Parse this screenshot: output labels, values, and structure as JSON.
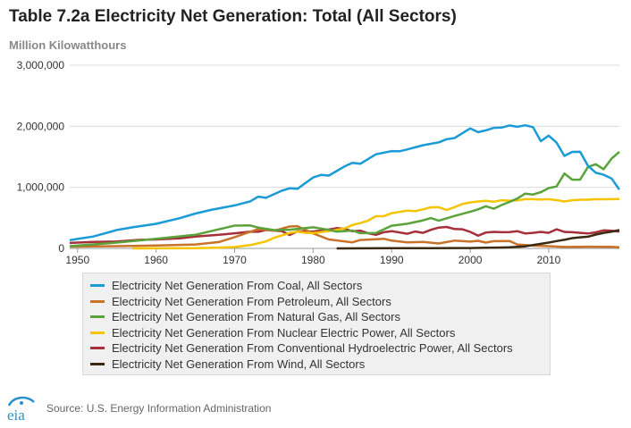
{
  "header": {
    "title": "Table 7.2a Electricity Net Generation: Total (All Sectors)",
    "subtitle": "Million Kilowatthours"
  },
  "footer": {
    "logo_text": "eia",
    "source": "Source: U.S. Energy Information Administration"
  },
  "chart_data": {
    "type": "line",
    "title": "Table 7.2a Electricity Net Generation: Total (All Sectors)",
    "ylabel": "Million Kilowatthours",
    "xlabel": "",
    "xlim": [
      1949,
      2019
    ],
    "ylim": [
      0,
      3000000
    ],
    "x_ticks": [
      1950,
      1960,
      1970,
      1980,
      1990,
      2000,
      2010
    ],
    "x_tick_labels": [
      "1950",
      "1960",
      "1970",
      "1980",
      "1990",
      "2000",
      "2010"
    ],
    "y_ticks": [
      0,
      1000000,
      2000000,
      3000000
    ],
    "y_tick_labels": [
      "0",
      "1,000,000",
      "2,000,000",
      "3,000,000"
    ],
    "grid": true,
    "legend_position": "bottom",
    "series": [
      {
        "name": "Electricity Net Generation From Coal, All Sectors",
        "color": "#1a9ad6",
        "points": [
          [
            1949,
            135000
          ],
          [
            1950,
            155000
          ],
          [
            1952,
            195000
          ],
          [
            1955,
            301000
          ],
          [
            1957,
            346000
          ],
          [
            1960,
            403000
          ],
          [
            1963,
            494000
          ],
          [
            1965,
            571000
          ],
          [
            1967,
            630000
          ],
          [
            1970,
            704000
          ],
          [
            1972,
            771000
          ],
          [
            1973,
            848000
          ],
          [
            1974,
            828000
          ],
          [
            1976,
            944000
          ],
          [
            1977,
            985000
          ],
          [
            1978,
            976000
          ],
          [
            1980,
            1162000
          ],
          [
            1981,
            1203000
          ],
          [
            1982,
            1192000
          ],
          [
            1984,
            1342000
          ],
          [
            1985,
            1402000
          ],
          [
            1986,
            1386000
          ],
          [
            1988,
            1541000
          ],
          [
            1990,
            1594000
          ],
          [
            1991,
            1591000
          ],
          [
            1992,
            1621000
          ],
          [
            1994,
            1690000
          ],
          [
            1996,
            1737000
          ],
          [
            1997,
            1788000
          ],
          [
            1998,
            1807000
          ],
          [
            2000,
            1966000
          ],
          [
            2001,
            1904000
          ],
          [
            2002,
            1933000
          ],
          [
            2003,
            1974000
          ],
          [
            2004,
            1978000
          ],
          [
            2005,
            2013000
          ],
          [
            2006,
            1991000
          ],
          [
            2007,
            2016000
          ],
          [
            2008,
            1986000
          ],
          [
            2009,
            1756000
          ],
          [
            2010,
            1847000
          ],
          [
            2011,
            1733000
          ],
          [
            2012,
            1514000
          ],
          [
            2013,
            1581000
          ],
          [
            2014,
            1582000
          ],
          [
            2015,
            1352000
          ],
          [
            2016,
            1239000
          ],
          [
            2017,
            1206000
          ],
          [
            2018,
            1146000
          ],
          [
            2019,
            965000
          ]
        ]
      },
      {
        "name": "Electricity Net Generation From Petroleum, All Sectors",
        "color": "#c8722a",
        "points": [
          [
            1949,
            29000
          ],
          [
            1955,
            37000
          ],
          [
            1960,
            48000
          ],
          [
            1965,
            65000
          ],
          [
            1968,
            104000
          ],
          [
            1970,
            184000
          ],
          [
            1972,
            274000
          ],
          [
            1973,
            314000
          ],
          [
            1975,
            289000
          ],
          [
            1977,
            358000
          ],
          [
            1978,
            365000
          ],
          [
            1979,
            303000
          ],
          [
            1980,
            246000
          ],
          [
            1982,
            147000
          ],
          [
            1985,
            100000
          ],
          [
            1986,
            137000
          ],
          [
            1988,
            149000
          ],
          [
            1989,
            158000
          ],
          [
            1990,
            127000
          ],
          [
            1992,
            100000
          ],
          [
            1994,
            106000
          ],
          [
            1996,
            81000
          ],
          [
            1998,
            128000
          ],
          [
            2000,
            111000
          ],
          [
            2001,
            125000
          ],
          [
            2002,
            95000
          ],
          [
            2003,
            119000
          ],
          [
            2005,
            122000
          ],
          [
            2006,
            64000
          ],
          [
            2008,
            46000
          ],
          [
            2010,
            37000
          ],
          [
            2012,
            23000
          ],
          [
            2015,
            28000
          ],
          [
            2018,
            25000
          ],
          [
            2019,
            19000
          ]
        ]
      },
      {
        "name": "Electricity Net Generation From Natural Gas, All Sectors",
        "color": "#5aa33a",
        "points": [
          [
            1949,
            37000
          ],
          [
            1955,
            95000
          ],
          [
            1960,
            158000
          ],
          [
            1965,
            222000
          ],
          [
            1970,
            373000
          ],
          [
            1972,
            376000
          ],
          [
            1973,
            341000
          ],
          [
            1975,
            300000
          ],
          [
            1977,
            306000
          ],
          [
            1980,
            346000
          ],
          [
            1982,
            305000
          ],
          [
            1983,
            274000
          ],
          [
            1985,
            292000
          ],
          [
            1986,
            249000
          ],
          [
            1988,
            253000
          ],
          [
            1990,
            372000
          ],
          [
            1992,
            404000
          ],
          [
            1994,
            460000
          ],
          [
            1995,
            496000
          ],
          [
            1996,
            455000
          ],
          [
            1998,
            531000
          ],
          [
            2000,
            601000
          ],
          [
            2001,
            639000
          ],
          [
            2002,
            691000
          ],
          [
            2003,
            650000
          ],
          [
            2004,
            710000
          ],
          [
            2005,
            761000
          ],
          [
            2006,
            816000
          ],
          [
            2007,
            897000
          ],
          [
            2008,
            883000
          ],
          [
            2009,
            921000
          ],
          [
            2010,
            988000
          ],
          [
            2011,
            1014000
          ],
          [
            2012,
            1226000
          ],
          [
            2013,
            1125000
          ],
          [
            2014,
            1127000
          ],
          [
            2015,
            1335000
          ],
          [
            2016,
            1379000
          ],
          [
            2017,
            1296000
          ],
          [
            2018,
            1469000
          ],
          [
            2019,
            1582000
          ]
        ]
      },
      {
        "name": "Electricity Net Generation From Nuclear Electric Power, All Sectors",
        "color": "#f5c400",
        "points": [
          [
            1957,
            0
          ],
          [
            1960,
            1000
          ],
          [
            1965,
            4000
          ],
          [
            1968,
            13000
          ],
          [
            1970,
            22000
          ],
          [
            1972,
            54000
          ],
          [
            1974,
            114000
          ],
          [
            1975,
            173000
          ],
          [
            1977,
            251000
          ],
          [
            1978,
            276000
          ],
          [
            1979,
            255000
          ],
          [
            1980,
            251000
          ],
          [
            1982,
            283000
          ],
          [
            1984,
            328000
          ],
          [
            1985,
            384000
          ],
          [
            1986,
            414000
          ],
          [
            1987,
            455000
          ],
          [
            1988,
            527000
          ],
          [
            1989,
            529000
          ],
          [
            1990,
            577000
          ],
          [
            1992,
            619000
          ],
          [
            1993,
            610000
          ],
          [
            1994,
            640000
          ],
          [
            1995,
            673000
          ],
          [
            1996,
            675000
          ],
          [
            1997,
            629000
          ],
          [
            1998,
            674000
          ],
          [
            1999,
            728000
          ],
          [
            2000,
            754000
          ],
          [
            2001,
            769000
          ],
          [
            2002,
            780000
          ],
          [
            2003,
            764000
          ],
          [
            2004,
            789000
          ],
          [
            2005,
            782000
          ],
          [
            2006,
            787000
          ],
          [
            2007,
            806000
          ],
          [
            2008,
            806000
          ],
          [
            2009,
            799000
          ],
          [
            2010,
            807000
          ],
          [
            2011,
            790000
          ],
          [
            2012,
            769000
          ],
          [
            2013,
            789000
          ],
          [
            2014,
            797000
          ],
          [
            2015,
            797000
          ],
          [
            2016,
            806000
          ],
          [
            2017,
            805000
          ],
          [
            2018,
            807000
          ],
          [
            2019,
            809000
          ]
        ]
      },
      {
        "name": "Electricity Net Generation From Conventional Hydroelectric Power, All Sectors",
        "color": "#a62f3a",
        "points": [
          [
            1949,
            89000
          ],
          [
            1952,
            105000
          ],
          [
            1955,
            113000
          ],
          [
            1958,
            140000
          ],
          [
            1960,
            146000
          ],
          [
            1963,
            166000
          ],
          [
            1965,
            194000
          ],
          [
            1968,
            222000
          ],
          [
            1970,
            248000
          ],
          [
            1972,
            273000
          ],
          [
            1973,
            272000
          ],
          [
            1974,
            301000
          ],
          [
            1976,
            284000
          ],
          [
            1977,
            220000
          ],
          [
            1978,
            280000
          ],
          [
            1980,
            276000
          ],
          [
            1982,
            309000
          ],
          [
            1983,
            332000
          ],
          [
            1984,
            321000
          ],
          [
            1985,
            281000
          ],
          [
            1986,
            290000
          ],
          [
            1987,
            249000
          ],
          [
            1988,
            223000
          ],
          [
            1989,
            265000
          ],
          [
            1990,
            283000
          ],
          [
            1992,
            240000
          ],
          [
            1993,
            276000
          ],
          [
            1994,
            254000
          ],
          [
            1995,
            305000
          ],
          [
            1996,
            341000
          ],
          [
            1997,
            351000
          ],
          [
            1998,
            318000
          ],
          [
            1999,
            313000
          ],
          [
            2000,
            271000
          ],
          [
            2001,
            208000
          ],
          [
            2002,
            260000
          ],
          [
            2003,
            271000
          ],
          [
            2004,
            265000
          ],
          [
            2005,
            267000
          ],
          [
            2006,
            282000
          ],
          [
            2007,
            245000
          ],
          [
            2008,
            254000
          ],
          [
            2009,
            271000
          ],
          [
            2010,
            255000
          ],
          [
            2011,
            313000
          ],
          [
            2012,
            271000
          ],
          [
            2013,
            265000
          ],
          [
            2014,
            255000
          ],
          [
            2015,
            245000
          ],
          [
            2016,
            264000
          ],
          [
            2017,
            296000
          ],
          [
            2018,
            288000
          ],
          [
            2019,
            274000
          ]
        ]
      },
      {
        "name": "Electricity Net Generation From Wind, All Sectors",
        "color": "#3a2a12",
        "points": [
          [
            1983,
            0
          ],
          [
            1990,
            3000
          ],
          [
            1995,
            3000
          ],
          [
            2000,
            6000
          ],
          [
            2002,
            10000
          ],
          [
            2004,
            14000
          ],
          [
            2005,
            18000
          ],
          [
            2006,
            27000
          ],
          [
            2007,
            34000
          ],
          [
            2008,
            55000
          ],
          [
            2009,
            74000
          ],
          [
            2010,
            95000
          ],
          [
            2011,
            120000
          ],
          [
            2012,
            141000
          ],
          [
            2013,
            168000
          ],
          [
            2014,
            182000
          ],
          [
            2015,
            191000
          ],
          [
            2016,
            227000
          ],
          [
            2017,
            254000
          ],
          [
            2018,
            273000
          ],
          [
            2019,
            300000
          ]
        ]
      }
    ]
  }
}
